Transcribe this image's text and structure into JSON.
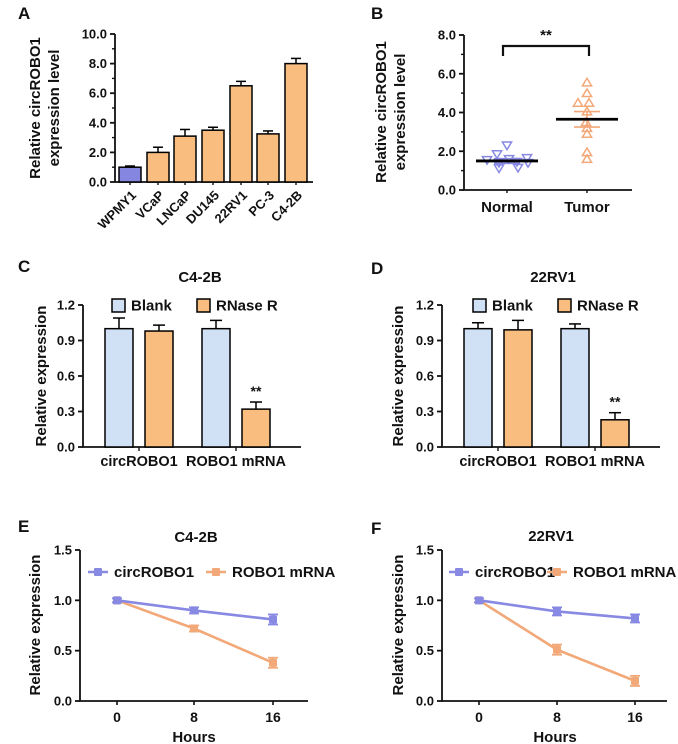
{
  "colors": {
    "orange_fill": "#F9BD80",
    "orange_line": "#F2A878",
    "purple_fill": "#8486DF",
    "purple_line": "#8789E3",
    "blue_fill": "#D0E0F5",
    "axis": "#111111"
  },
  "chart_data": [
    {
      "panel": "A",
      "type": "bar",
      "title": "",
      "ylabel": [
        "Relative circROBO1",
        "expression level"
      ],
      "categories": [
        "WPMY1",
        "VCaP",
        "LNCaP",
        "DU145",
        "22RV1",
        "PC-3",
        "C4-2B"
      ],
      "values": [
        1.0,
        2.0,
        3.1,
        3.5,
        6.5,
        3.25,
        8.0
      ],
      "errors": [
        0.08,
        0.35,
        0.45,
        0.2,
        0.3,
        0.2,
        0.35
      ],
      "bar_colors": [
        "purple",
        "orange",
        "orange",
        "orange",
        "orange",
        "orange",
        "orange"
      ],
      "ylim": [
        0,
        10
      ],
      "yticks": [
        "0.0",
        "2.0",
        "4.0",
        "6.0",
        "8.0",
        "10.0"
      ],
      "minor_step": 1
    },
    {
      "panel": "B",
      "type": "scatter",
      "title": "",
      "ylabel": [
        "Relative circROBO1",
        "expression level"
      ],
      "groups": [
        {
          "name": "Normal",
          "marker": "triangle-down",
          "color": "purple",
          "mean": 1.5,
          "sem_low": 1.38,
          "sem_high": 1.62,
          "points": [
            [
              -20,
              1.55
            ],
            [
              -10,
              1.85
            ],
            [
              0,
              2.3
            ],
            [
              -8,
              1.4
            ],
            [
              2,
              1.6
            ],
            [
              -8,
              1.12
            ],
            [
              10,
              1.45
            ],
            [
              11,
              1.15
            ],
            [
              20,
              1.65
            ],
            [
              21,
              1.4
            ]
          ]
        },
        {
          "name": "Tumor",
          "marker": "triangle-up",
          "color": "orange",
          "mean": 3.65,
          "sem_low": 3.25,
          "sem_high": 4.05,
          "points": [
            [
              0,
              5.55
            ],
            [
              0,
              5.0
            ],
            [
              -9,
              4.5
            ],
            [
              2,
              4.5
            ],
            [
              0,
              4.05
            ],
            [
              -1,
              3.5
            ],
            [
              0,
              3.2
            ],
            [
              0,
              2.9
            ],
            [
              0,
              1.95
            ],
            [
              0,
              1.6
            ]
          ]
        }
      ],
      "ylim": [
        0,
        8
      ],
      "yticks": [
        "0.0",
        "2.0",
        "4.0",
        "6.0",
        "8.0"
      ],
      "minor_step": 1,
      "significance": "**"
    },
    {
      "panel": "C",
      "type": "grouped_bar",
      "title": "C4-2B",
      "ylabel": [
        "Relative expression"
      ],
      "categories": [
        "circROBO1",
        "ROBO1 mRNA"
      ],
      "series": [
        {
          "name": "Blank",
          "color": "blue",
          "values": [
            1.0,
            1.0
          ],
          "errors": [
            0.09,
            0.07
          ]
        },
        {
          "name": "RNase R",
          "color": "orange",
          "values": [
            0.98,
            0.32
          ],
          "errors": [
            0.05,
            0.06
          ]
        }
      ],
      "ylim": [
        0,
        1.2
      ],
      "yticks": [
        "0.0",
        "0.3",
        "0.6",
        "0.9",
        "1.2"
      ],
      "significance": {
        "label": "**",
        "series": 1,
        "category": 1
      }
    },
    {
      "panel": "D",
      "type": "grouped_bar",
      "title": "22RV1",
      "ylabel": [
        "Relative expression"
      ],
      "categories": [
        "circROBO1",
        "ROBO1 mRNA"
      ],
      "series": [
        {
          "name": "Blank",
          "color": "blue",
          "values": [
            1.0,
            1.0
          ],
          "errors": [
            0.05,
            0.04
          ]
        },
        {
          "name": "RNase R",
          "color": "orange",
          "values": [
            0.99,
            0.23
          ],
          "errors": [
            0.08,
            0.06
          ]
        }
      ],
      "ylim": [
        0,
        1.2
      ],
      "yticks": [
        "0.0",
        "0.3",
        "0.6",
        "0.9",
        "1.2"
      ],
      "significance": {
        "label": "**",
        "series": 1,
        "category": 1
      }
    },
    {
      "panel": "E",
      "type": "line",
      "title": "C4-2B",
      "xlabel": "Hours",
      "ylabel": [
        "Relative expression"
      ],
      "x": [
        0,
        8,
        16
      ],
      "xticks": [
        "0",
        "8",
        "16"
      ],
      "series": [
        {
          "name": "circROBO1",
          "color": "purple",
          "values": [
            1.0,
            0.9,
            0.81
          ],
          "errors": [
            0.02,
            0.03,
            0.05
          ]
        },
        {
          "name": "ROBO1 mRNA",
          "color": "orange",
          "values": [
            1.0,
            0.72,
            0.38
          ],
          "errors": [
            0.02,
            0.03,
            0.05
          ]
        }
      ],
      "ylim": [
        0,
        1.5
      ],
      "yticks": [
        "0.0",
        "0.5",
        "1.0",
        "1.5"
      ]
    },
    {
      "panel": "F",
      "type": "line",
      "title": "22RV1",
      "xlabel": "Hours",
      "ylabel": [
        "Relative expression"
      ],
      "x": [
        0,
        8,
        16
      ],
      "xticks": [
        "0",
        "8",
        "16"
      ],
      "series": [
        {
          "name": "circROBO1",
          "color": "purple",
          "values": [
            1.0,
            0.89,
            0.82
          ],
          "errors": [
            0.02,
            0.04,
            0.04
          ]
        },
        {
          "name": "ROBO1 mRNA",
          "color": "orange",
          "values": [
            1.0,
            0.51,
            0.2
          ],
          "errors": [
            0.02,
            0.05,
            0.05
          ]
        }
      ],
      "ylim": [
        0,
        1.5
      ],
      "yticks": [
        "0.0",
        "0.5",
        "1.0",
        "1.5"
      ]
    }
  ]
}
